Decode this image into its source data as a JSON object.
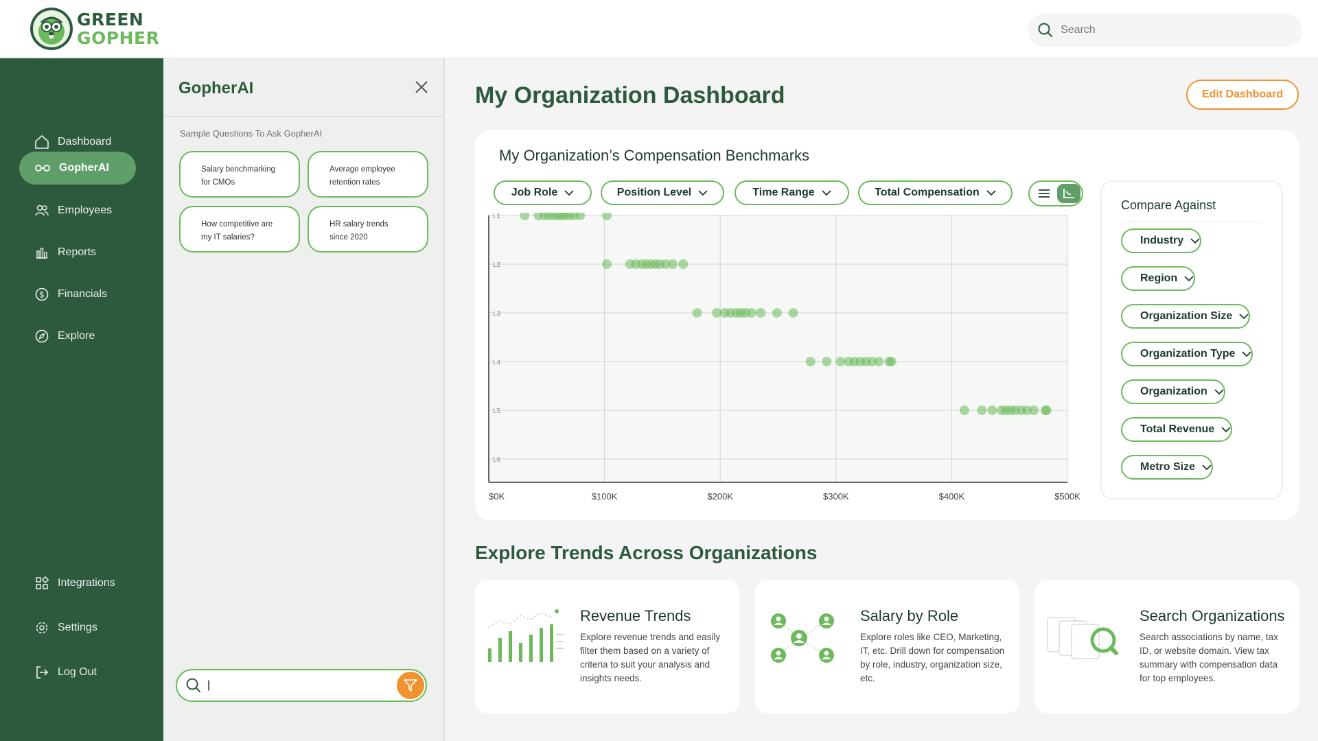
{
  "logo": {
    "line1": "GREEN",
    "line2": "GOPHER"
  },
  "search": {
    "placeholder": "Search"
  },
  "sidebar": {
    "items": [
      {
        "label": "Dashboard",
        "icon": "home-icon"
      },
      {
        "label": "GopherAI",
        "icon": "glasses-icon",
        "active": true
      },
      {
        "label": "Employees",
        "icon": "users-icon"
      },
      {
        "label": "Reports",
        "icon": "bar-chart-icon"
      },
      {
        "label": "Financials",
        "icon": "dollar-icon"
      },
      {
        "label": "Explore",
        "icon": "compass-icon"
      }
    ],
    "bottom_items": [
      {
        "label": "Integrations",
        "icon": "grid-icon"
      },
      {
        "label": "Settings",
        "icon": "gear-icon"
      },
      {
        "label": "Log Out",
        "icon": "logout-icon"
      }
    ]
  },
  "ai_panel": {
    "title": "GopherAI",
    "sample_label": "Sample Questions To Ask GopherAI",
    "questions": [
      {
        "line1": "Salary benchmarking",
        "line2": "for CMOs"
      },
      {
        "line1": "Average employee",
        "line2": "retention rates"
      },
      {
        "line1": "How competitive are",
        "line2": "my IT salaries?"
      },
      {
        "line1": "HR salary trends",
        "line2": "since 2020"
      }
    ],
    "input_value": "|"
  },
  "main": {
    "title": "My Organization Dashboard",
    "edit_button": "Edit Dashboard"
  },
  "benchmarks": {
    "title": "My Organization’s Compensation Benchmarks",
    "filters": [
      "Job Role",
      "Position Level",
      "Time Range",
      "Total Compensation"
    ],
    "compare": {
      "title": "Compare Against",
      "options": [
        "Industry",
        "Region",
        "Organization Size",
        "Organization Type",
        "Organization",
        "Total Revenue",
        "Metro Size"
      ]
    }
  },
  "chart_data": {
    "type": "scatter",
    "title": "",
    "xlabel": "",
    "ylabel": "",
    "x_ticks": [
      "$0K",
      "$100K",
      "$200K",
      "$300K",
      "$400K",
      "$500K"
    ],
    "y_categories": [
      "L1",
      "L2",
      "L3",
      "L4",
      "L5",
      "L6"
    ],
    "xlim": [
      0,
      500000
    ],
    "grid": true,
    "color": "#6cba5c",
    "series": [
      {
        "level": "L1",
        "x": [
          31000,
          43000,
          48000,
          52000,
          56000,
          60000,
          63000,
          66000,
          70000,
          74000,
          79000,
          102000
        ]
      },
      {
        "level": "L2",
        "x": [
          102000,
          122000,
          127000,
          132000,
          136000,
          140000,
          144000,
          148000,
          153000,
          159000,
          168000
        ]
      },
      {
        "level": "L3",
        "x": [
          180000,
          197000,
          204000,
          209000,
          214000,
          218000,
          222000,
          227000,
          235000,
          249000,
          263000
        ]
      },
      {
        "level": "L4",
        "x": [
          278000,
          292000,
          304000,
          311000,
          316000,
          321000,
          326000,
          331000,
          337000,
          346000,
          348000
        ]
      },
      {
        "level": "L5",
        "x": [
          411000,
          426000,
          435000,
          443000,
          447000,
          451000,
          455000,
          460000,
          465000,
          471000,
          481000,
          482000
        ]
      },
      {
        "level": "L6",
        "x": []
      }
    ]
  },
  "trends": {
    "title": "Explore Trends Across Organizations",
    "cards": [
      {
        "title": "Revenue Trends",
        "description": "Explore revenue trends and easily filter them based on a variety of criteria to suit your analysis and insights needs.",
        "icon": "revenue-chart-icon"
      },
      {
        "title": "Salary by Role",
        "description": "Explore roles like CEO, Marketing, IT, etc. Drill down for compensation by role, industry, organization size, etc.",
        "icon": "people-network-icon"
      },
      {
        "title": "Search Organizations",
        "description": "Search associations by name, tax ID, or website domain. View tax summary with compensation data for top employees.",
        "icon": "document-search-icon"
      }
    ]
  }
}
